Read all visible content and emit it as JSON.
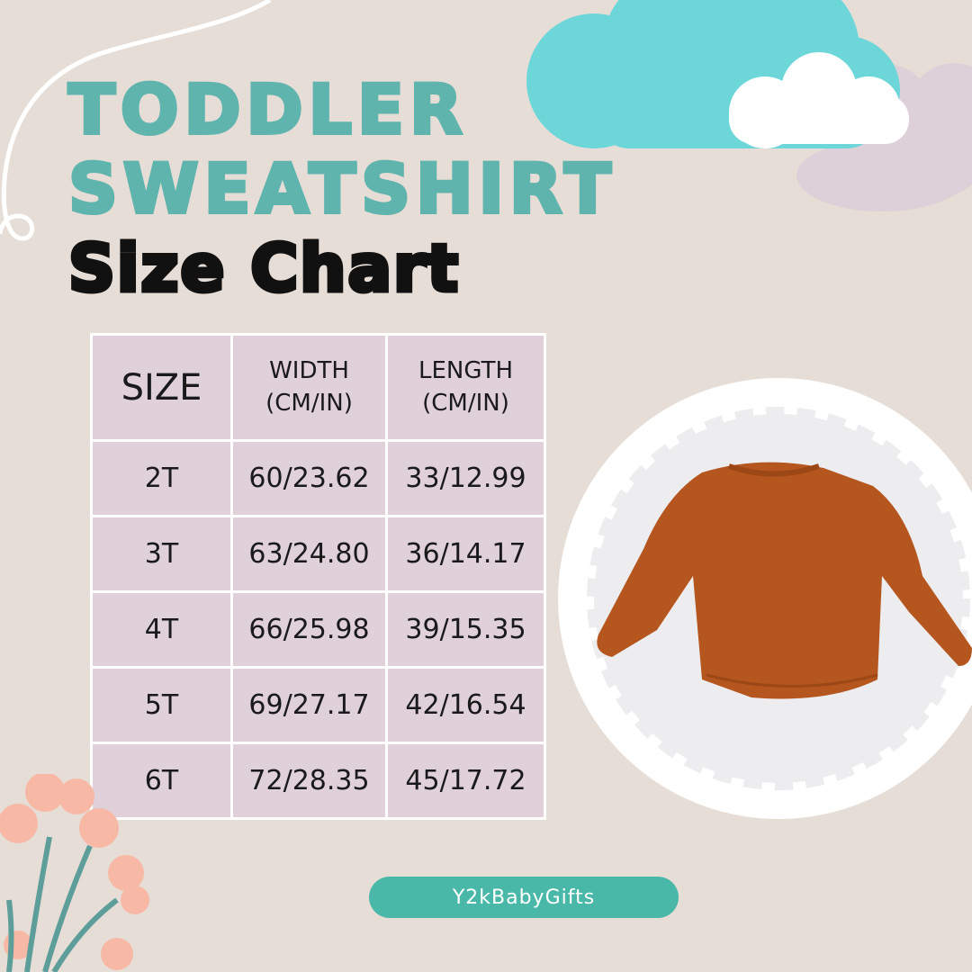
{
  "title": {
    "line1": "Toddler",
    "line2": "Sweatshirt",
    "line3": "Size Chart"
  },
  "table": {
    "headers": [
      "SIZE",
      "WIDTH (CM/IN)",
      "LENGTH (CM/IN)"
    ],
    "header_lines": {
      "width": [
        "WIDTH",
        "(CM/IN)"
      ],
      "length": [
        "LENGTH",
        "(CM/IN)"
      ]
    },
    "rows": [
      [
        "2T",
        "60/23.62",
        "33/12.99"
      ],
      [
        "3T",
        "63/24.80",
        "36/14.17"
      ],
      [
        "4T",
        "66/25.98",
        "39/15.35"
      ],
      [
        "5T",
        "69/27.17",
        "42/16.54"
      ],
      [
        "6T",
        "72/28.35",
        "45/17.72"
      ]
    ]
  },
  "shop_button": "Y2kBabyGifts",
  "colors": {
    "teal_title": "#5fb4ad",
    "cell": "#dfd0d9",
    "button": "#4ab8a8",
    "sweatshirt": "#b5561f",
    "background": "#e6ddd6"
  },
  "icons": [
    "cloud-icon",
    "flower-icon",
    "sweatshirt-image"
  ]
}
